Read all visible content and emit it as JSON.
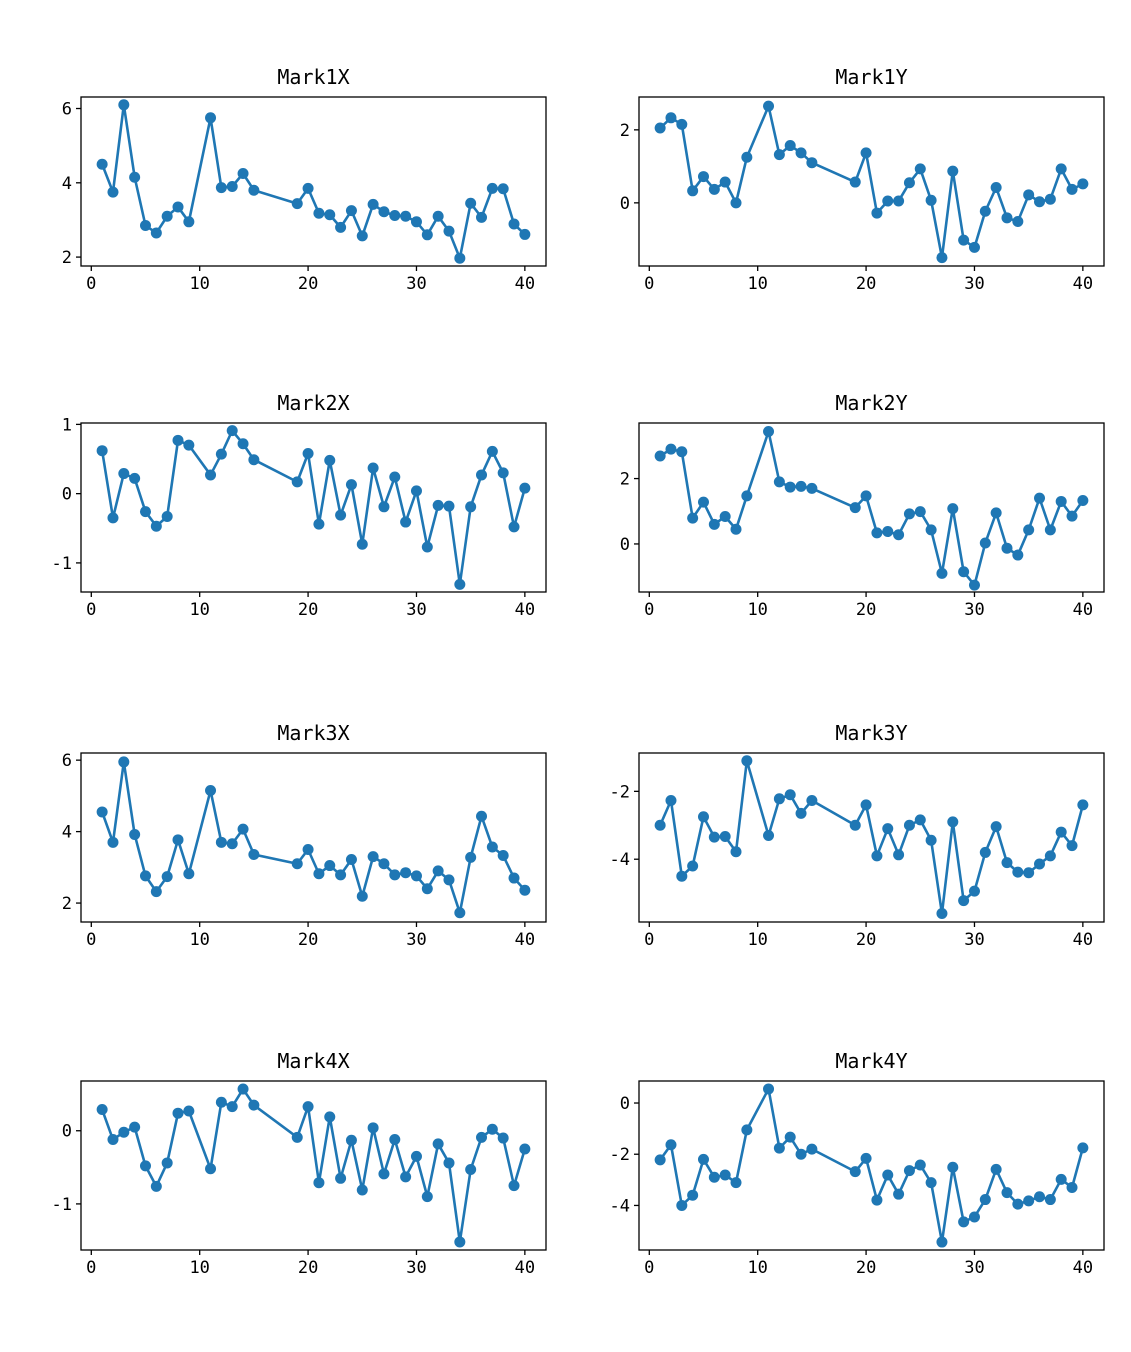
{
  "figure": {
    "background": "#ffffff",
    "series_color": "#1f77b4",
    "marker": "o",
    "grid": false,
    "legend": "none",
    "x_values": [
      1,
      2,
      3,
      4,
      5,
      6,
      7,
      8,
      9,
      11,
      12,
      13,
      14,
      15,
      19,
      20,
      21,
      22,
      23,
      24,
      25,
      26,
      27,
      28,
      29,
      30,
      31,
      32,
      33,
      34,
      35,
      36,
      37,
      38,
      39,
      40
    ],
    "xticks": [
      0,
      10,
      20,
      30,
      40
    ],
    "xlim": [
      -0.95,
      41.95
    ]
  },
  "chart_data": [
    {
      "type": "line",
      "title": "Mark1X",
      "xlabel": "",
      "ylabel": "",
      "yticks": [
        2,
        4,
        6
      ],
      "ylim": [
        1.76,
        6.31
      ],
      "y": [
        4.5,
        3.75,
        6.1,
        4.15,
        2.85,
        2.65,
        3.1,
        3.35,
        2.95,
        5.75,
        3.87,
        3.9,
        4.25,
        3.8,
        3.44,
        3.85,
        3.18,
        3.14,
        2.8,
        3.25,
        2.57,
        3.42,
        3.22,
        3.12,
        3.1,
        2.95,
        2.6,
        3.1,
        2.7,
        1.97,
        3.45,
        3.07,
        3.85,
        3.84,
        2.89,
        2.61
      ]
    },
    {
      "type": "line",
      "title": "Mark1Y",
      "xlabel": "",
      "ylabel": "",
      "yticks": [
        0,
        2
      ],
      "ylim": [
        -1.73,
        2.9
      ],
      "y": [
        2.05,
        2.33,
        2.15,
        0.33,
        0.72,
        0.37,
        0.57,
        0.0,
        1.25,
        2.65,
        1.32,
        1.57,
        1.37,
        1.1,
        0.57,
        1.37,
        -0.28,
        0.05,
        0.05,
        0.55,
        0.93,
        0.07,
        -1.5,
        0.87,
        -1.02,
        -1.22,
        -0.23,
        0.42,
        -0.41,
        -0.51,
        0.22,
        0.03,
        0.1,
        0.93,
        0.37,
        0.52
      ]
    },
    {
      "type": "line",
      "title": "Mark2X",
      "xlabel": "",
      "ylabel": "",
      "yticks": [
        -1,
        0,
        1
      ],
      "ylim": [
        -1.42,
        1.02
      ],
      "y": [
        0.62,
        -0.35,
        0.29,
        0.22,
        -0.26,
        -0.47,
        -0.33,
        0.77,
        0.7,
        0.27,
        0.57,
        0.91,
        0.72,
        0.49,
        0.17,
        0.58,
        -0.44,
        0.48,
        -0.31,
        0.13,
        -0.73,
        0.37,
        -0.19,
        0.24,
        -0.41,
        0.04,
        -0.77,
        -0.17,
        -0.18,
        -1.31,
        -0.19,
        0.27,
        0.61,
        0.3,
        -0.48,
        0.08
      ]
    },
    {
      "type": "line",
      "title": "Mark2Y",
      "xlabel": "",
      "ylabel": "",
      "yticks": [
        0,
        2
      ],
      "ylim": [
        -1.47,
        3.7
      ],
      "y": [
        2.69,
        2.9,
        2.82,
        0.79,
        1.28,
        0.6,
        0.84,
        0.45,
        1.47,
        3.44,
        1.9,
        1.74,
        1.76,
        1.7,
        1.11,
        1.47,
        0.34,
        0.38,
        0.28,
        0.92,
        0.99,
        0.43,
        -0.9,
        1.08,
        -0.85,
        -1.26,
        0.03,
        0.95,
        -0.13,
        -0.34,
        0.43,
        1.4,
        0.43,
        1.3,
        0.85,
        1.33
      ]
    },
    {
      "type": "line",
      "title": "Mark3X",
      "xlabel": "",
      "ylabel": "",
      "yticks": [
        2,
        4,
        6
      ],
      "ylim": [
        1.47,
        6.2
      ],
      "y": [
        4.55,
        3.7,
        5.95,
        3.92,
        2.76,
        2.32,
        2.74,
        3.77,
        2.82,
        5.15,
        3.7,
        3.66,
        4.07,
        3.36,
        3.1,
        3.5,
        2.82,
        3.05,
        2.79,
        3.22,
        2.19,
        3.3,
        3.1,
        2.79,
        2.85,
        2.76,
        2.4,
        2.9,
        2.65,
        1.73,
        3.28,
        4.43,
        3.57,
        3.33,
        2.7,
        2.36
      ]
    },
    {
      "type": "line",
      "title": "Mark3Y",
      "xlabel": "",
      "ylabel": "",
      "yticks": [
        -4,
        -2
      ],
      "ylim": [
        -5.85,
        -0.87
      ],
      "y": [
        -3.0,
        -2.27,
        -4.5,
        -4.2,
        -2.75,
        -3.35,
        -3.33,
        -3.78,
        -1.1,
        -3.3,
        -2.22,
        -2.1,
        -2.65,
        -2.27,
        -3.0,
        -2.4,
        -3.9,
        -3.1,
        -3.87,
        -3.0,
        -2.84,
        -3.44,
        -5.6,
        -2.9,
        -5.22,
        -4.94,
        -3.8,
        -3.04,
        -4.1,
        -4.38,
        -4.4,
        -4.14,
        -3.9,
        -3.2,
        -3.6,
        -2.4
      ]
    },
    {
      "type": "line",
      "title": "Mark4X",
      "xlabel": "",
      "ylabel": "",
      "yticks": [
        -1,
        0
      ],
      "ylim": [
        -1.63,
        0.68
      ],
      "y": [
        0.29,
        -0.12,
        -0.02,
        0.05,
        -0.48,
        -0.76,
        -0.44,
        0.24,
        0.27,
        -0.52,
        0.39,
        0.33,
        0.57,
        0.35,
        -0.09,
        0.33,
        -0.71,
        0.19,
        -0.65,
        -0.13,
        -0.81,
        0.04,
        -0.59,
        -0.12,
        -0.63,
        -0.35,
        -0.9,
        -0.18,
        -0.44,
        -1.52,
        -0.53,
        -0.09,
        0.02,
        -0.1,
        -0.75,
        -0.25
      ]
    },
    {
      "type": "line",
      "title": "Mark4Y",
      "xlabel": "",
      "ylabel": "",
      "yticks": [
        -4,
        -2,
        0
      ],
      "ylim": [
        -5.74,
        0.86
      ],
      "y": [
        -2.22,
        -1.63,
        -4.0,
        -3.6,
        -2.2,
        -2.9,
        -2.81,
        -3.11,
        -1.05,
        0.55,
        -1.76,
        -1.33,
        -2.0,
        -1.8,
        -2.68,
        -2.16,
        -3.79,
        -2.81,
        -3.56,
        -2.64,
        -2.42,
        -3.11,
        -5.43,
        -2.51,
        -4.64,
        -4.45,
        -3.77,
        -2.59,
        -3.5,
        -3.95,
        -3.82,
        -3.66,
        -3.77,
        -2.98,
        -3.3,
        -1.75
      ]
    }
  ]
}
